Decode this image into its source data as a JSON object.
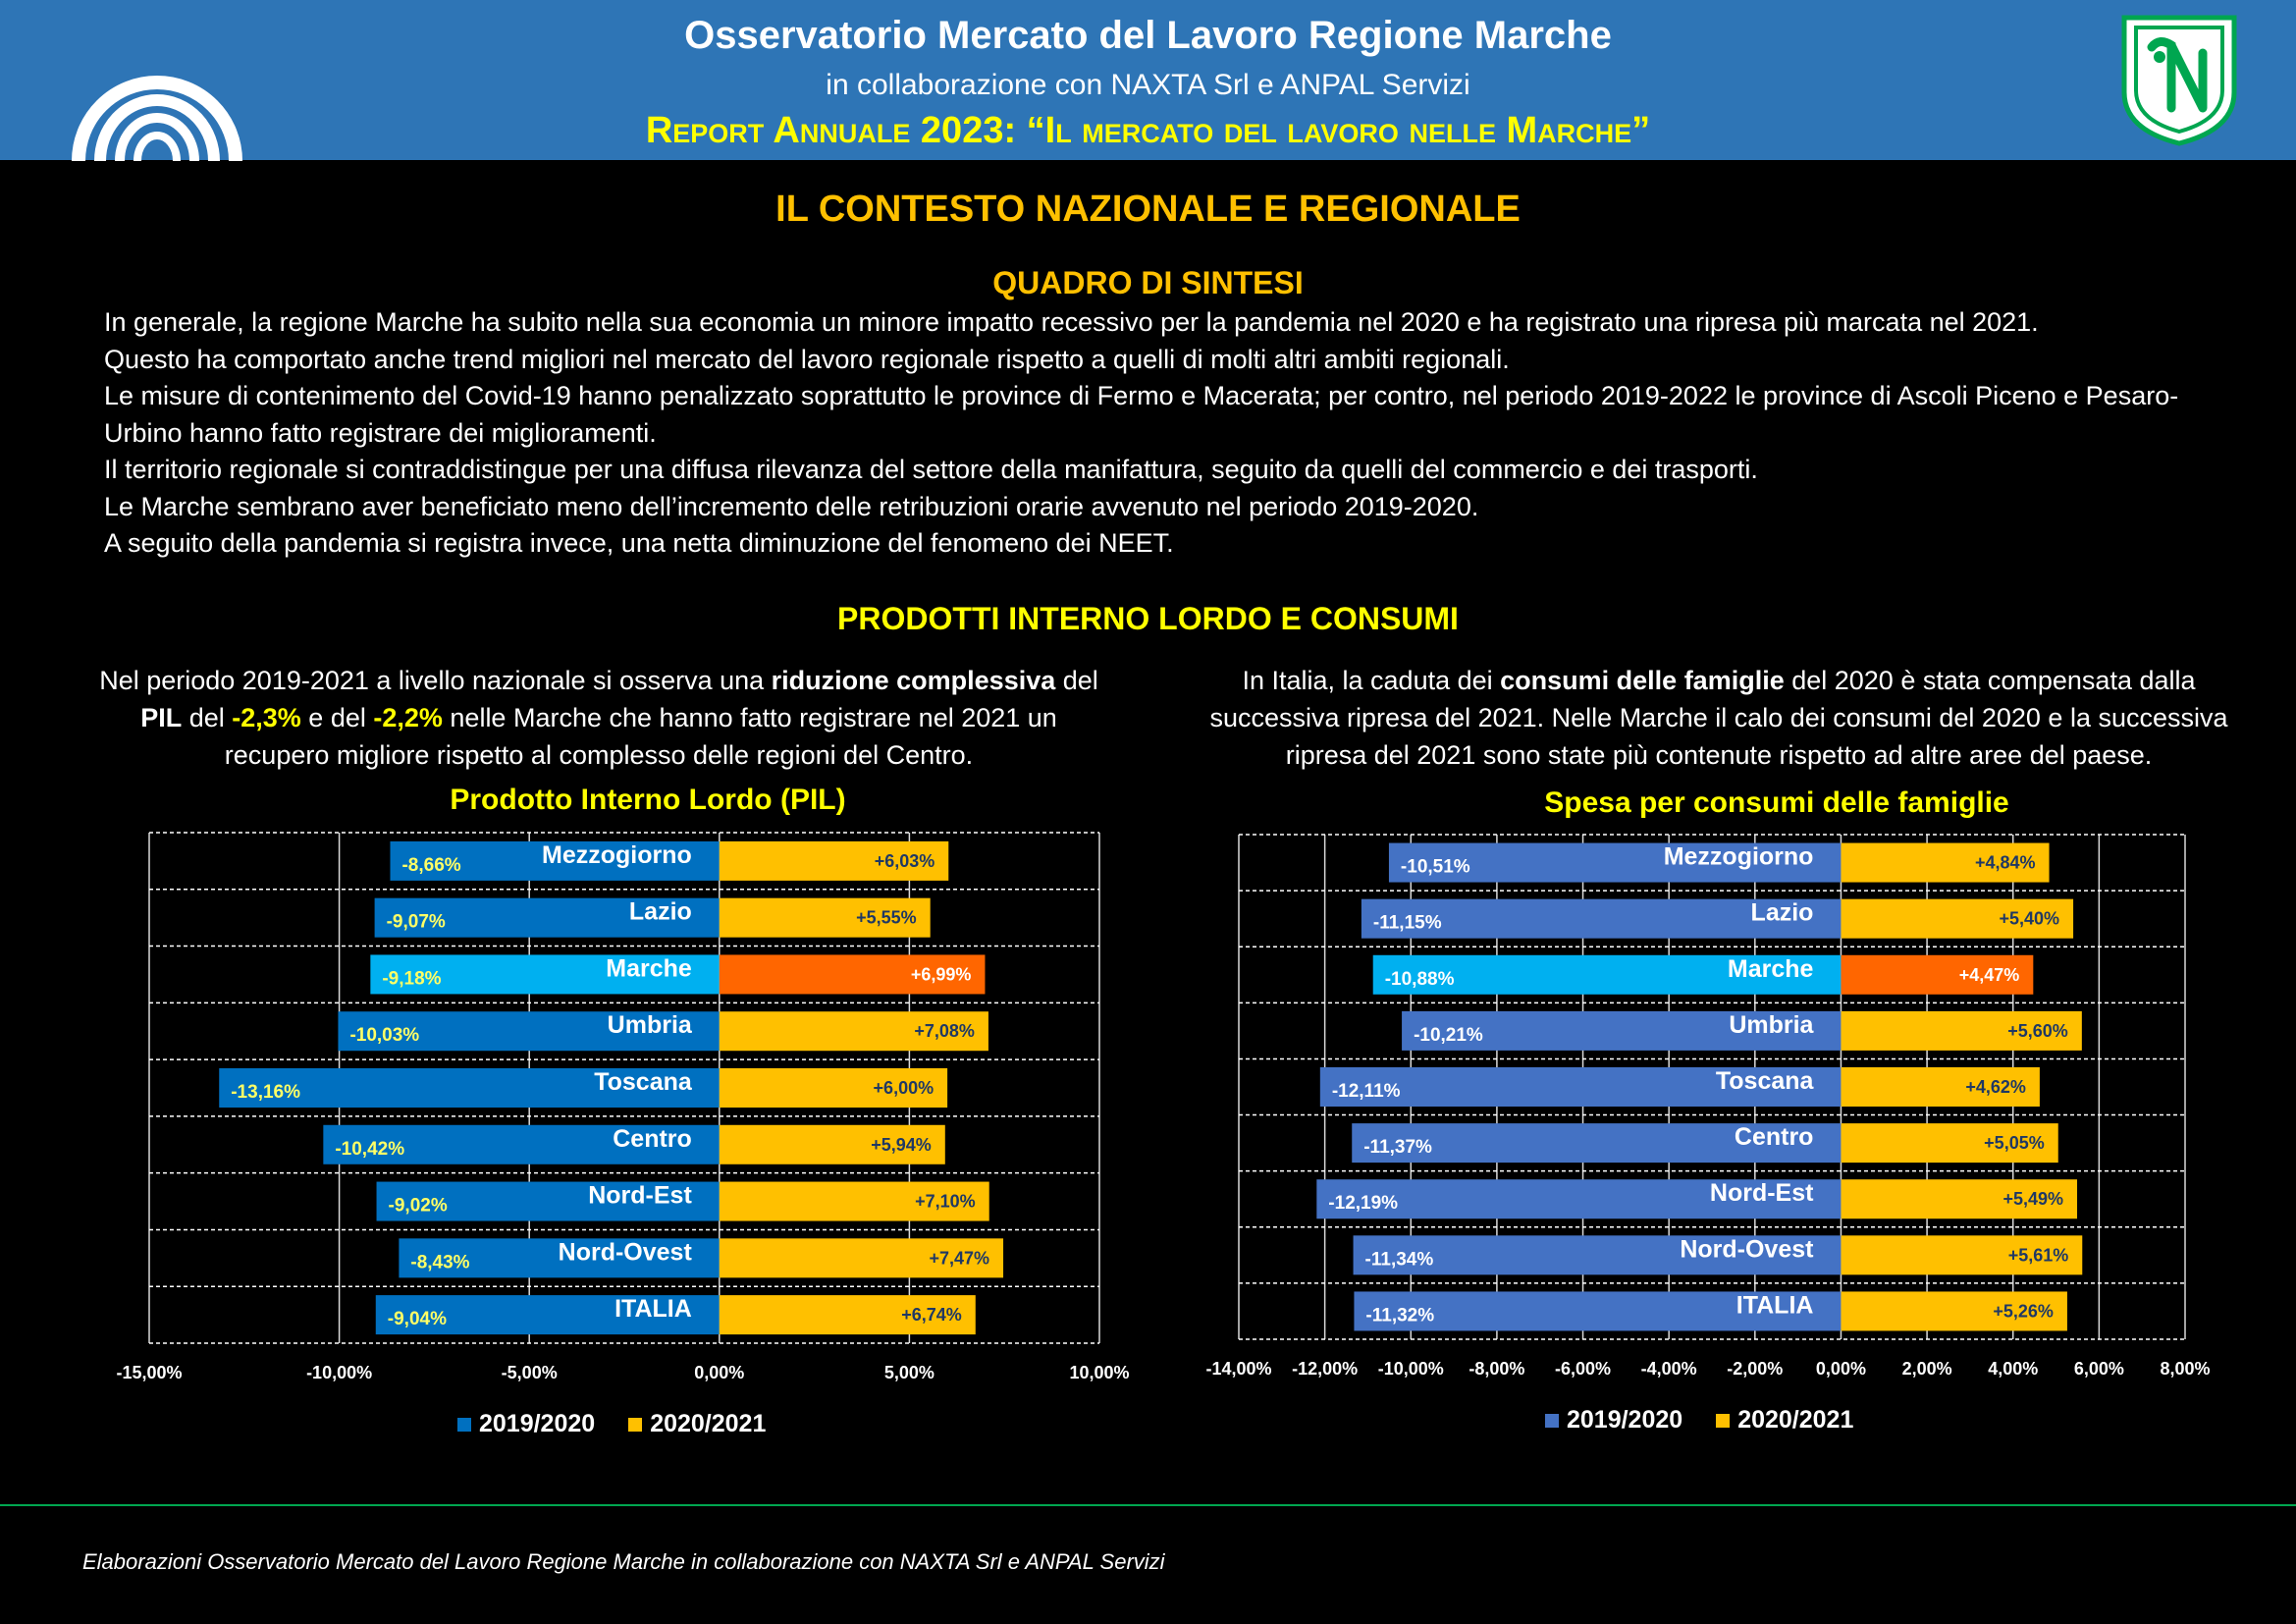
{
  "header": {
    "title": "Osservatorio Mercato del Lavoro Regione Marche",
    "subtitle": "in collaborazione con NAXTA Srl e ANPAL Servizi",
    "report": "Report Annuale 2023: “Il mercato del lavoro nelle Marche”"
  },
  "section_title": "IL CONTESTO NAZIONALE E REGIONALE",
  "summary": {
    "title": "QUADRO DI SINTESI",
    "lines": [
      "In generale, la regione Marche ha subito nella sua economia un minore impatto recessivo per la pandemia nel 2020 e ha registrato una ripresa più marcata nel 2021.",
      "Questo ha comportato anche trend migliori nel mercato del lavoro regionale rispetto a quelli di molti altri ambiti regionali.",
      "Le misure di contenimento del Covid-19 hanno penalizzato soprattutto le province di Fermo e Macerata; per contro, nel periodo 2019-2022 le province di Ascoli Piceno e Pesaro-Urbino hanno fatto registrare dei miglioramenti.",
      "Il territorio regionale si contraddistingue per una diffusa rilevanza del settore della manifattura, seguito da quelli del commercio e dei trasporti.",
      "Le Marche sembrano aver beneficiato meno dell’incremento delle retribuzioni orarie avvenuto nel periodo 2019-2020.",
      "A seguito della pandemia si registra invece, una netta diminuzione del fenomeno dei NEET."
    ]
  },
  "pil_section_title": "PRODOTTI INTERNO LORDO E CONSUMI",
  "left_para": {
    "p1": "Nel periodo 2019-2021 a livello nazionale si osserva una ",
    "b1": "riduzione complessiva",
    "p2": " del ",
    "b2": "PIL",
    "p3": " del ",
    "y1": "-2,3%",
    "p4": " e del ",
    "y2": "-2,2%",
    "p5": " nelle Marche che hanno fatto registrare nel 2021 un recupero migliore rispetto al complesso delle regioni del Centro."
  },
  "right_para": {
    "p1": "In Italia, la caduta dei ",
    "b1": "consumi delle famiglie",
    "p2": " del 2020 è stata compensata dalla successiva ripresa del 2021. Nelle Marche il calo dei consumi del 2020 e la successiva ripresa del 2021 sono state più contenute rispetto ad altre aree del paese."
  },
  "chart_data": [
    {
      "type": "bar",
      "orientation": "horizontal",
      "title": "Prodotto Interno Lordo (PIL)",
      "categories": [
        "Mezzogiorno",
        "Lazio",
        "Marche",
        "Umbria",
        "Toscana",
        "Centro",
        "Nord-Est",
        "Nord-Ovest",
        "ITALIA"
      ],
      "series": [
        {
          "name": "2019/2020",
          "values": [
            -8.66,
            -9.07,
            -9.18,
            -10.03,
            -13.16,
            -10.42,
            -9.02,
            -8.43,
            -9.04
          ],
          "labels": [
            "-8,66%",
            "-9,07%",
            "-9,18%",
            "-10,03%",
            "-13,16%",
            "-10,42%",
            "-9,02%",
            "-8,43%",
            "-9,04%"
          ]
        },
        {
          "name": "2020/2021",
          "values": [
            6.03,
            5.55,
            6.99,
            7.08,
            6.0,
            5.94,
            7.1,
            7.47,
            6.74
          ],
          "labels": [
            "+6,03%",
            "+5,55%",
            "+6,99%",
            "+7,08%",
            "+6,00%",
            "+5,94%",
            "+7,10%",
            "+7,47%",
            "+6,74%"
          ]
        }
      ],
      "highlight": "Marche",
      "xlim": [
        -15,
        10
      ],
      "ticks": [
        -15,
        -10,
        -5,
        0,
        5,
        10
      ],
      "tick_labels": [
        "-15,00%",
        "-10,00%",
        "-5,00%",
        "0,00%",
        "5,00%",
        "10,00%"
      ],
      "colors": {
        "neg": "#0070c0",
        "pos": "#ffc000",
        "neg_hl": "#00b0f0",
        "pos_hl": "#ff6600",
        "neg_label": "#ffff66",
        "pos_label": "#1f3864"
      },
      "legend": "bottom",
      "grid": true
    },
    {
      "type": "bar",
      "orientation": "horizontal",
      "title": "Spesa per consumi delle famiglie",
      "categories": [
        "Mezzogiorno",
        "Lazio",
        "Marche",
        "Umbria",
        "Toscana",
        "Centro",
        "Nord-Est",
        "Nord-Ovest",
        "ITALIA"
      ],
      "series": [
        {
          "name": "2019/2020",
          "values": [
            -10.51,
            -11.15,
            -10.88,
            -10.21,
            -12.11,
            -11.37,
            -12.19,
            -11.34,
            -11.32
          ],
          "labels": [
            "-10,51%",
            "-11,15%",
            "-10,88%",
            "-10,21%",
            "-12,11%",
            "-11,37%",
            "-12,19%",
            "-11,34%",
            "-11,32%"
          ]
        },
        {
          "name": "2020/2021",
          "values": [
            4.84,
            5.4,
            4.47,
            5.6,
            4.62,
            5.05,
            5.49,
            5.61,
            5.26
          ],
          "labels": [
            "+4,84%",
            "+5,40%",
            "+4,47%",
            "+5,60%",
            "+4,62%",
            "+5,05%",
            "+5,49%",
            "+5,61%",
            "+5,26%"
          ]
        }
      ],
      "highlight": "Marche",
      "xlim": [
        -14,
        8
      ],
      "ticks": [
        -14,
        -12,
        -10,
        -8,
        -6,
        -4,
        -2,
        0,
        2,
        4,
        6,
        8
      ],
      "tick_labels": [
        "-14,00%",
        "-12,00%",
        "-10,00%",
        "-8,00%",
        "-6,00%",
        "-4,00%",
        "-2,00%",
        "0,00%",
        "2,00%",
        "4,00%",
        "6,00%",
        "8,00%"
      ],
      "colors": {
        "neg": "#4472c4",
        "pos": "#ffc000",
        "neg_hl": "#00b0f0",
        "pos_hl": "#ff6600",
        "neg_label": "#ffffff",
        "pos_label": "#1f3864"
      },
      "legend": "bottom",
      "grid": true
    }
  ],
  "footer": "Elaborazioni Osservatorio Mercato del Lavoro Regione Marche in collaborazione con NAXTA Srl e ANPAL Servizi"
}
